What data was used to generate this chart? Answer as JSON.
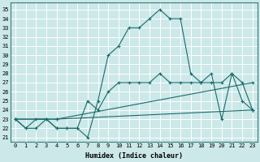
{
  "xlabel": "Humidex (Indice chaleur)",
  "background_color": "#cce8e8",
  "grid_color": "#b0d8d8",
  "line_color": "#1a6b6b",
  "xlim": [
    -0.5,
    23.5
  ],
  "ylim": [
    20.5,
    35.8
  ],
  "xticks": [
    0,
    1,
    2,
    3,
    4,
    5,
    6,
    7,
    8,
    9,
    10,
    11,
    12,
    13,
    14,
    15,
    16,
    17,
    18,
    19,
    20,
    21,
    22,
    23
  ],
  "yticks": [
    21,
    22,
    23,
    24,
    25,
    26,
    27,
    28,
    29,
    30,
    31,
    32,
    33,
    34,
    35
  ],
  "series": [
    {
      "x": [
        0,
        1,
        2,
        3,
        4,
        5,
        6,
        7,
        8,
        9,
        10,
        11,
        12,
        13,
        14,
        15,
        16,
        17,
        18,
        19,
        20,
        21,
        22,
        23
      ],
      "y": [
        23,
        22,
        22,
        23,
        22,
        22,
        22,
        21,
        25,
        30,
        31,
        33,
        33,
        34,
        35,
        34,
        34,
        28,
        27,
        28,
        23,
        28,
        25,
        24
      ]
    },
    {
      "x": [
        0,
        1,
        2,
        3,
        4,
        5,
        6,
        7,
        8,
        9,
        10,
        11,
        12,
        13,
        14,
        15,
        16,
        17,
        18,
        19,
        20,
        21,
        22,
        23
      ],
      "y": [
        23,
        22,
        23,
        23,
        22,
        22,
        22,
        25,
        24,
        26,
        27,
        27,
        27,
        27,
        28,
        27,
        27,
        27,
        27,
        27,
        27,
        28,
        27,
        24
      ]
    },
    {
      "x": [
        0,
        4,
        23
      ],
      "y": [
        23,
        23,
        27
      ]
    },
    {
      "x": [
        0,
        4,
        23
      ],
      "y": [
        23,
        23,
        24
      ]
    }
  ]
}
